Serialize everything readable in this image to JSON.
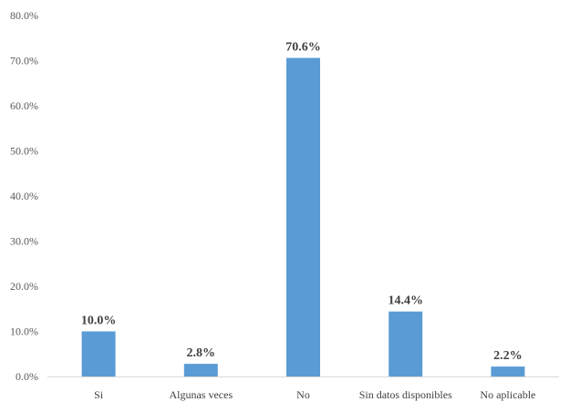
{
  "chart_data": {
    "type": "bar",
    "categories": [
      "Si",
      "Algunas veces",
      "No",
      "Sin datos disponibles",
      "No aplicable"
    ],
    "values": [
      10.0,
      2.8,
      70.6,
      14.4,
      2.2
    ],
    "data_labels": [
      "10.0%",
      "2.8%",
      "70.6%",
      "14.4%",
      "2.2%"
    ],
    "y_ticks": [
      0,
      10,
      20,
      30,
      40,
      50,
      60,
      70,
      80
    ],
    "y_tick_labels": [
      "0.0%",
      "10.0%",
      "20.0%",
      "30.0%",
      "40.0%",
      "50.0%",
      "60.0%",
      "70.0%",
      "80.0%"
    ],
    "ylim": [
      0,
      80
    ],
    "grid": false,
    "colors": {
      "bar": "#5b9bd5",
      "axis": "#d9d9d9"
    }
  }
}
